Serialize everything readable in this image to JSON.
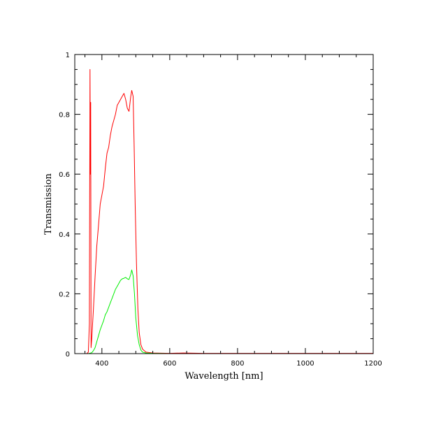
{
  "chart_data": {
    "type": "line",
    "xlabel": "Wavelength [nm]",
    "ylabel": "Transmission",
    "xlim": [
      320,
      1200
    ],
    "ylim": [
      0,
      1
    ],
    "x_ticks": [
      400,
      600,
      800,
      1000,
      1200
    ],
    "y_ticks": [
      0,
      0.2,
      0.4,
      0.6,
      0.8,
      1
    ],
    "x_tick_labels": [
      "400",
      "600",
      "800",
      "1000",
      "1200"
    ],
    "y_tick_labels": [
      "0",
      "0.2",
      "0.4",
      "0.6",
      "0.8",
      "1"
    ],
    "grid": false,
    "legend": "none",
    "series": [
      {
        "color": "#ff0000",
        "points": [
          [
            320,
            0.0
          ],
          [
            355,
            0.0
          ],
          [
            360,
            0.005
          ],
          [
            363,
            0.1
          ],
          [
            364,
            0.5
          ],
          [
            365,
            0.95
          ],
          [
            366,
            0.6
          ],
          [
            367,
            0.84
          ],
          [
            368,
            0.02
          ],
          [
            370,
            0.05
          ],
          [
            375,
            0.15
          ],
          [
            380,
            0.26
          ],
          [
            385,
            0.36
          ],
          [
            390,
            0.43
          ],
          [
            395,
            0.5
          ],
          [
            400,
            0.53
          ],
          [
            405,
            0.56
          ],
          [
            410,
            0.62
          ],
          [
            415,
            0.67
          ],
          [
            420,
            0.69
          ],
          [
            425,
            0.73
          ],
          [
            430,
            0.76
          ],
          [
            435,
            0.78
          ],
          [
            440,
            0.8
          ],
          [
            445,
            0.83
          ],
          [
            450,
            0.84
          ],
          [
            455,
            0.85
          ],
          [
            460,
            0.86
          ],
          [
            465,
            0.87
          ],
          [
            470,
            0.85
          ],
          [
            475,
            0.82
          ],
          [
            480,
            0.81
          ],
          [
            485,
            0.86
          ],
          [
            488,
            0.88
          ],
          [
            492,
            0.86
          ],
          [
            495,
            0.7
          ],
          [
            498,
            0.5
          ],
          [
            502,
            0.3
          ],
          [
            506,
            0.15
          ],
          [
            510,
            0.07
          ],
          [
            515,
            0.03
          ],
          [
            520,
            0.015
          ],
          [
            530,
            0.005
          ],
          [
            550,
            0.002
          ],
          [
            600,
            0.001
          ],
          [
            640,
            0.002
          ],
          [
            700,
            0.001
          ],
          [
            800,
            0.001
          ],
          [
            1000,
            0.001
          ],
          [
            1200,
            0.001
          ]
        ]
      },
      {
        "color": "#00ee00",
        "points": [
          [
            320,
            0.0
          ],
          [
            360,
            0.0
          ],
          [
            370,
            0.003
          ],
          [
            375,
            0.01
          ],
          [
            380,
            0.02
          ],
          [
            385,
            0.04
          ],
          [
            390,
            0.06
          ],
          [
            395,
            0.08
          ],
          [
            400,
            0.095
          ],
          [
            405,
            0.11
          ],
          [
            410,
            0.13
          ],
          [
            415,
            0.14
          ],
          [
            420,
            0.155
          ],
          [
            425,
            0.17
          ],
          [
            430,
            0.185
          ],
          [
            435,
            0.2
          ],
          [
            440,
            0.215
          ],
          [
            445,
            0.225
          ],
          [
            450,
            0.235
          ],
          [
            455,
            0.245
          ],
          [
            460,
            0.25
          ],
          [
            465,
            0.252
          ],
          [
            470,
            0.255
          ],
          [
            475,
            0.25
          ],
          [
            480,
            0.248
          ],
          [
            485,
            0.265
          ],
          [
            488,
            0.28
          ],
          [
            492,
            0.26
          ],
          [
            496,
            0.2
          ],
          [
            500,
            0.12
          ],
          [
            505,
            0.06
          ],
          [
            510,
            0.03
          ],
          [
            515,
            0.012
          ],
          [
            520,
            0.005
          ],
          [
            530,
            0.002
          ],
          [
            550,
            0.001
          ],
          [
            600,
            0.0
          ],
          [
            650,
            0.0
          ],
          [
            660,
            0.0
          ]
        ]
      }
    ]
  }
}
